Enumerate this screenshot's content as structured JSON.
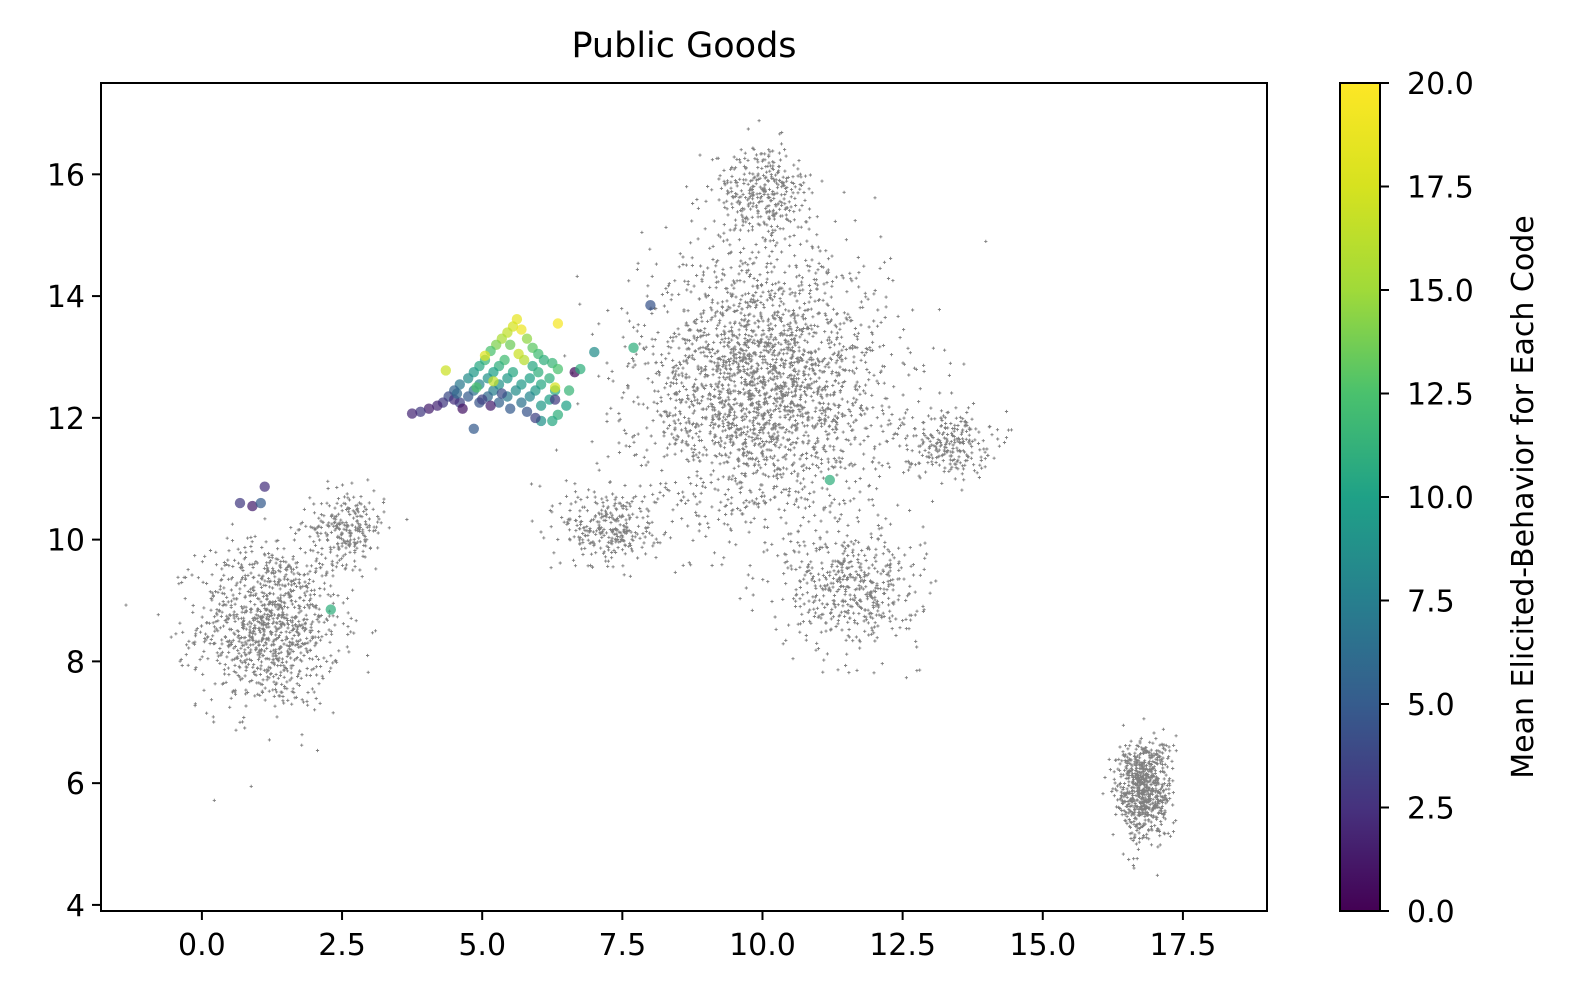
{
  "chart_data": {
    "type": "scatter",
    "title": "Public Goods",
    "xlabel": "",
    "ylabel": "",
    "xlim": [
      -1.8,
      19.0
    ],
    "ylim": [
      3.9,
      17.5
    ],
    "xticks": [
      "0.0",
      "2.5",
      "5.0",
      "7.5",
      "10.0",
      "12.5",
      "15.0",
      "17.5"
    ],
    "yticks": [
      "4",
      "6",
      "8",
      "10",
      "12",
      "14",
      "16"
    ],
    "grid": false,
    "colorbar": {
      "label": "Mean Elicited-Behavior for Each Code",
      "range": [
        0,
        20
      ],
      "ticks": [
        "0.0",
        "2.5",
        "5.0",
        "7.5",
        "10.0",
        "12.5",
        "15.0",
        "17.5",
        "20.0"
      ],
      "colormap": "viridis"
    },
    "background_series": {
      "name": "",
      "color": "#555555",
      "marker": "plus",
      "clusters": [
        {
          "center": [
            1.2,
            8.6
          ],
          "spread": [
            1.15,
            1.25
          ],
          "count": 1100
        },
        {
          "center": [
            2.6,
            10.2
          ],
          "spread": [
            0.6,
            0.55
          ],
          "count": 250
        },
        {
          "center": [
            10.0,
            12.5
          ],
          "spread": [
            2.0,
            2.0
          ],
          "count": 2600
        },
        {
          "center": [
            10.0,
            15.7
          ],
          "spread": [
            0.8,
            0.7
          ],
          "count": 350
        },
        {
          "center": [
            11.6,
            9.2
          ],
          "spread": [
            1.1,
            0.9
          ],
          "count": 500
        },
        {
          "center": [
            7.3,
            10.2
          ],
          "spread": [
            0.8,
            0.6
          ],
          "count": 300
        },
        {
          "center": [
            13.3,
            11.6
          ],
          "spread": [
            0.7,
            0.5
          ],
          "count": 250
        },
        {
          "center": [
            16.8,
            5.9
          ],
          "spread": [
            0.45,
            0.75
          ],
          "count": 750
        }
      ]
    },
    "highlight_series": {
      "name": "",
      "points": [
        {
          "x": 5.62,
          "y": 13.62,
          "v": 18.5
        },
        {
          "x": 5.55,
          "y": 13.5,
          "v": 17.5
        },
        {
          "x": 5.45,
          "y": 13.4,
          "v": 16.5
        },
        {
          "x": 5.7,
          "y": 13.45,
          "v": 19.0
        },
        {
          "x": 5.35,
          "y": 13.3,
          "v": 15.5
        },
        {
          "x": 5.8,
          "y": 13.3,
          "v": 14.5
        },
        {
          "x": 5.25,
          "y": 13.2,
          "v": 14.0
        },
        {
          "x": 5.5,
          "y": 13.2,
          "v": 13.5
        },
        {
          "x": 5.9,
          "y": 13.15,
          "v": 13.0
        },
        {
          "x": 5.15,
          "y": 13.1,
          "v": 12.5
        },
        {
          "x": 5.65,
          "y": 13.05,
          "v": 17.0
        },
        {
          "x": 6.0,
          "y": 13.05,
          "v": 12.0
        },
        {
          "x": 5.05,
          "y": 12.95,
          "v": 11.5
        },
        {
          "x": 5.4,
          "y": 12.95,
          "v": 12.0
        },
        {
          "x": 5.75,
          "y": 12.95,
          "v": 16.0
        },
        {
          "x": 6.1,
          "y": 12.95,
          "v": 11.0
        },
        {
          "x": 4.95,
          "y": 12.85,
          "v": 10.5
        },
        {
          "x": 5.3,
          "y": 12.85,
          "v": 11.0
        },
        {
          "x": 5.9,
          "y": 12.85,
          "v": 10.5
        },
        {
          "x": 6.25,
          "y": 12.9,
          "v": 11.5
        },
        {
          "x": 4.85,
          "y": 12.75,
          "v": 9.5
        },
        {
          "x": 5.2,
          "y": 12.75,
          "v": 10.0
        },
        {
          "x": 5.55,
          "y": 12.75,
          "v": 10.5
        },
        {
          "x": 6.0,
          "y": 12.75,
          "v": 11.0
        },
        {
          "x": 6.35,
          "y": 12.8,
          "v": 12.5
        },
        {
          "x": 4.75,
          "y": 12.65,
          "v": 8.5
        },
        {
          "x": 5.1,
          "y": 12.65,
          "v": 9.0
        },
        {
          "x": 5.45,
          "y": 12.65,
          "v": 9.5
        },
        {
          "x": 5.85,
          "y": 12.65,
          "v": 10.0
        },
        {
          "x": 6.2,
          "y": 12.65,
          "v": 11.0
        },
        {
          "x": 4.6,
          "y": 12.55,
          "v": 7.0
        },
        {
          "x": 4.95,
          "y": 12.55,
          "v": 8.0
        },
        {
          "x": 5.3,
          "y": 12.55,
          "v": 9.0
        },
        {
          "x": 5.7,
          "y": 12.55,
          "v": 9.5
        },
        {
          "x": 6.05,
          "y": 12.55,
          "v": 10.5
        },
        {
          "x": 4.5,
          "y": 12.45,
          "v": 5.5
        },
        {
          "x": 4.85,
          "y": 12.45,
          "v": 6.5
        },
        {
          "x": 5.2,
          "y": 12.45,
          "v": 7.5
        },
        {
          "x": 5.6,
          "y": 12.45,
          "v": 8.5
        },
        {
          "x": 5.95,
          "y": 12.45,
          "v": 9.5
        },
        {
          "x": 6.3,
          "y": 12.45,
          "v": 10.5
        },
        {
          "x": 4.4,
          "y": 12.35,
          "v": 4.0
        },
        {
          "x": 4.75,
          "y": 12.35,
          "v": 5.0
        },
        {
          "x": 5.1,
          "y": 12.35,
          "v": 6.0
        },
        {
          "x": 5.45,
          "y": 12.35,
          "v": 7.0
        },
        {
          "x": 5.85,
          "y": 12.35,
          "v": 8.0
        },
        {
          "x": 6.2,
          "y": 12.3,
          "v": 10.0
        },
        {
          "x": 4.3,
          "y": 12.25,
          "v": 3.0
        },
        {
          "x": 4.6,
          "y": 12.25,
          "v": 3.5
        },
        {
          "x": 4.95,
          "y": 12.25,
          "v": 4.5
        },
        {
          "x": 5.3,
          "y": 12.25,
          "v": 5.5
        },
        {
          "x": 5.7,
          "y": 12.25,
          "v": 6.5
        },
        {
          "x": 6.05,
          "y": 12.2,
          "v": 9.5
        },
        {
          "x": 4.2,
          "y": 12.2,
          "v": 2.0
        },
        {
          "x": 4.5,
          "y": 12.3,
          "v": 2.5
        },
        {
          "x": 5.0,
          "y": 12.3,
          "v": 3.5
        },
        {
          "x": 5.5,
          "y": 12.15,
          "v": 5.0
        },
        {
          "x": 5.8,
          "y": 12.1,
          "v": 4.5
        },
        {
          "x": 6.35,
          "y": 12.05,
          "v": 11.0
        },
        {
          "x": 6.25,
          "y": 11.95,
          "v": 10.5
        },
        {
          "x": 6.05,
          "y": 11.95,
          "v": 9.0
        },
        {
          "x": 5.95,
          "y": 12.0,
          "v": 3.5
        },
        {
          "x": 6.5,
          "y": 12.2,
          "v": 10.0
        },
        {
          "x": 4.05,
          "y": 12.15,
          "v": 1.5
        },
        {
          "x": 3.9,
          "y": 12.1,
          "v": 3.0
        },
        {
          "x": 3.75,
          "y": 12.07,
          "v": 2.0
        },
        {
          "x": 4.85,
          "y": 11.82,
          "v": 5.0
        },
        {
          "x": 6.3,
          "y": 12.3,
          "v": 3.0
        },
        {
          "x": 6.3,
          "y": 12.5,
          "v": 17.5
        },
        {
          "x": 6.35,
          "y": 13.55,
          "v": 19.5
        },
        {
          "x": 6.65,
          "y": 12.75,
          "v": 0.5
        },
        {
          "x": 6.75,
          "y": 12.8,
          "v": 11.0
        },
        {
          "x": 6.55,
          "y": 12.45,
          "v": 11.5
        },
        {
          "x": 7.0,
          "y": 13.08,
          "v": 8.5
        },
        {
          "x": 7.7,
          "y": 13.15,
          "v": 11.0
        },
        {
          "x": 8.0,
          "y": 13.85,
          "v": 4.5
        },
        {
          "x": 5.05,
          "y": 13.02,
          "v": 18.0
        },
        {
          "x": 4.35,
          "y": 12.78,
          "v": 17.0
        },
        {
          "x": 5.2,
          "y": 12.6,
          "v": 16.5
        },
        {
          "x": 4.65,
          "y": 12.15,
          "v": 1.0
        },
        {
          "x": 5.15,
          "y": 12.2,
          "v": 1.5
        },
        {
          "x": 4.55,
          "y": 12.4,
          "v": 6.0
        },
        {
          "x": 5.35,
          "y": 12.4,
          "v": 4.0
        },
        {
          "x": 4.9,
          "y": 12.5,
          "v": 12.5
        },
        {
          "x": 0.68,
          "y": 10.6,
          "v": 3.0
        },
        {
          "x": 0.9,
          "y": 10.55,
          "v": 1.5
        },
        {
          "x": 1.05,
          "y": 10.6,
          "v": 5.0
        },
        {
          "x": 1.12,
          "y": 10.87,
          "v": 2.5
        },
        {
          "x": 2.3,
          "y": 8.85,
          "v": 11.0
        },
        {
          "x": 11.2,
          "y": 10.98,
          "v": 11.0
        }
      ]
    }
  }
}
